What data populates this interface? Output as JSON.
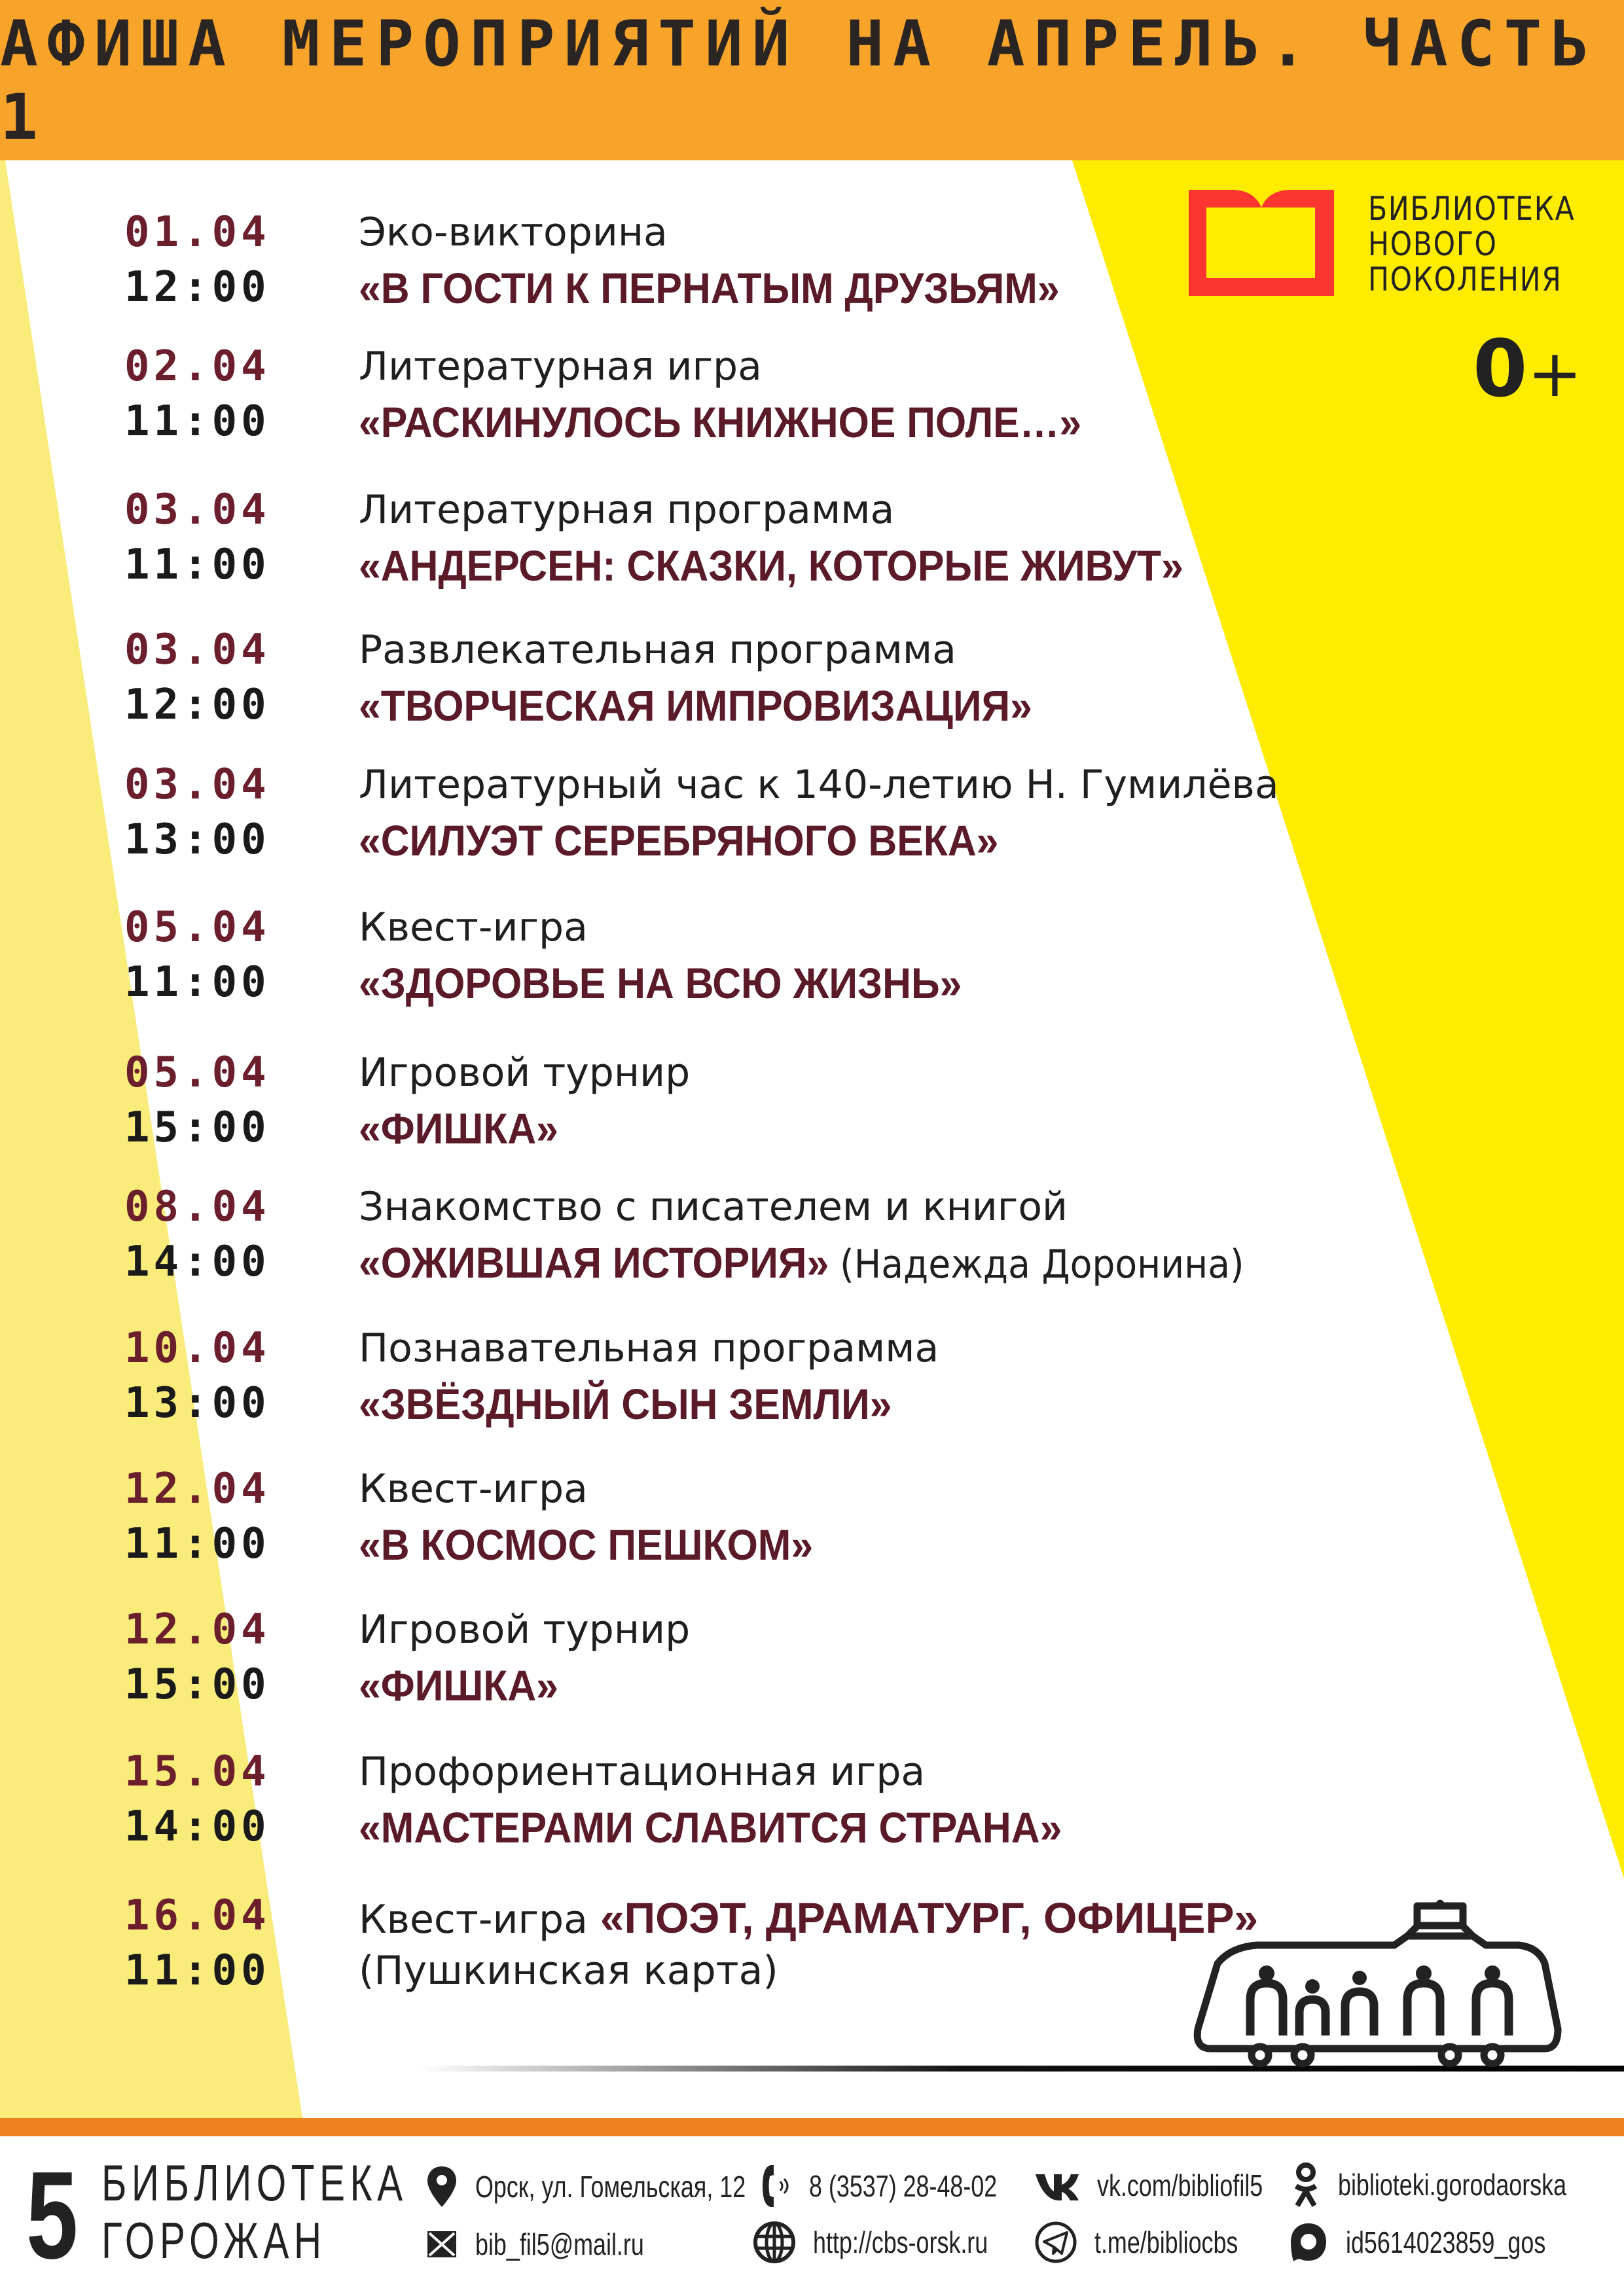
{
  "header": {
    "title": "АФИША МЕРОПРИЯТИЙ НА АПРЕЛЬ. ЧАСТЬ 1"
  },
  "colors": {
    "header": "#f8a42a",
    "accent_yellow": "#ffec00",
    "pale_yellow": "#f9ec7a",
    "orange_bar": "#ef8220",
    "title_dark_red": "#5a1a28",
    "logo_red": "#fd3530"
  },
  "logo": {
    "line1": "БИБЛИОТЕКА",
    "line2": "НОВОГО",
    "line3": "ПОКОЛЕНИЯ",
    "age": "0",
    "age_plus": "+"
  },
  "events": [
    {
      "date": "01.04",
      "time": "12:00",
      "type": "Эко-викторина",
      "title": "«В ГОСТИ К ПЕРНАТЫМ ДРУЗЬЯМ»"
    },
    {
      "date": "02.04",
      "time": "11:00",
      "type": "Литературная игра",
      "title": "«РАСКИНУЛОСЬ КНИЖНОЕ ПОЛЕ…»"
    },
    {
      "date": "03.04",
      "time": "11:00",
      "type": "Литературная программа",
      "title": "«АНДЕРСЕН: СКАЗКИ, КОТОРЫЕ ЖИВУТ»"
    },
    {
      "date": "03.04",
      "time": "12:00",
      "type": "Развлекательная программа",
      "title": "«ТВОРЧЕСКАЯ ИМПРОВИЗАЦИЯ»"
    },
    {
      "date": "03.04",
      "time": "13:00",
      "type": "Литературный час к 140-летию Н. Гумилёва",
      "title": "«СИЛУЭТ СЕРЕБРЯНОГО ВЕКА»"
    },
    {
      "date": "05.04",
      "time": "11:00",
      "type": "Квест-игра",
      "title": "«ЗДОРОВЬЕ НА ВСЮ ЖИЗНЬ»"
    },
    {
      "date": "05.04",
      "time": "15:00",
      "type": "Игровой турнир",
      "title": "«ФИШКА»"
    },
    {
      "date": "08.04",
      "time": "14:00",
      "type": "Знакомство с писателем и книгой",
      "title": "«ОЖИВШАЯ ИСТОРИЯ»",
      "note": "(Надежда Доронина)"
    },
    {
      "date": "10.04",
      "time": "13:00",
      "type": "Познавательная программа",
      "title": "«ЗВЁЗДНЫЙ СЫН ЗЕМЛИ»"
    },
    {
      "date": "12.04",
      "time": "11:00",
      "type": "Квест-игра",
      "title": "«В КОСМОС ПЕШКОМ»"
    },
    {
      "date": "12.04",
      "time": "15:00",
      "type": "Игровой турнир",
      "title": "«ФИШКА»"
    },
    {
      "date": "15.04",
      "time": "14:00",
      "type": "Профориентационная игра",
      "title": "«МАСТЕРАМИ СЛАВИТСЯ СТРАНА»"
    }
  ],
  "last_event": {
    "date": "16.04",
    "time": "11:00",
    "type": "Квест-игра",
    "title": "«ПОЭТ, ДРАМАТУРГ, ОФИЦЕР»",
    "note": "(Пушкинская карта)"
  },
  "footer": {
    "number": "5",
    "line1": "БИБЛИОТЕКА",
    "line2": "ГОРОЖАН",
    "address": "Орск, ул. Гомельская, 12",
    "phone": "8 (3537) 28-48-02",
    "vk": "vk.com/bibliofil5",
    "ok": "biblioteki.gorodaorska",
    "email": "bib_fil5@mail.ru",
    "site": "http://cbs-orsk.ru",
    "telegram": "t.me/bibliocbs",
    "max": "id5614023859_gos"
  }
}
